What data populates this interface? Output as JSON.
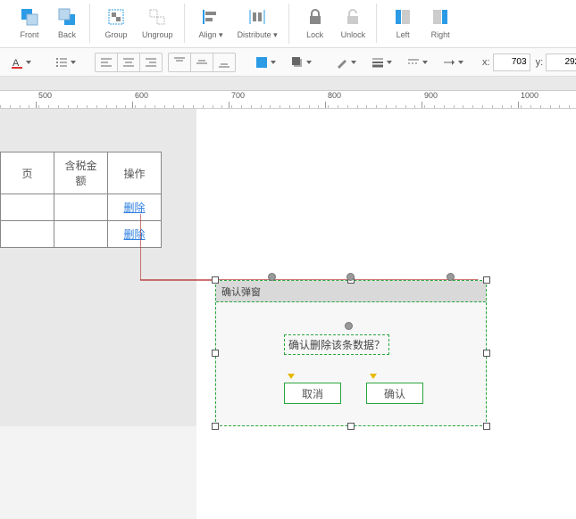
{
  "toolbar1": {
    "front": "Front",
    "back": "Back",
    "group": "Group",
    "ungroup": "Ungroup",
    "align": "Align ▾",
    "distribute": "Distribute ▾",
    "lock": "Lock",
    "unlock": "Unlock",
    "left": "Left",
    "right": "Right"
  },
  "coords": {
    "x_label": "x:",
    "x_value": "703",
    "y_label": "y:",
    "y_value": "292"
  },
  "ruler_ticks": [
    "500",
    "600",
    "700",
    "800",
    "900",
    "1000"
  ],
  "table": {
    "headers": [
      "页",
      "含税金额",
      "操作"
    ],
    "link_text": "删除"
  },
  "dialog": {
    "title": "确认弹窗",
    "message": "确认删除该条数据？",
    "cancel": "取消",
    "ok": "确认"
  },
  "colors": {
    "accent_blue": "#2b9be6",
    "sel_green": "#2aa63d",
    "link": "#2b7de0",
    "connector": "#b22222"
  }
}
